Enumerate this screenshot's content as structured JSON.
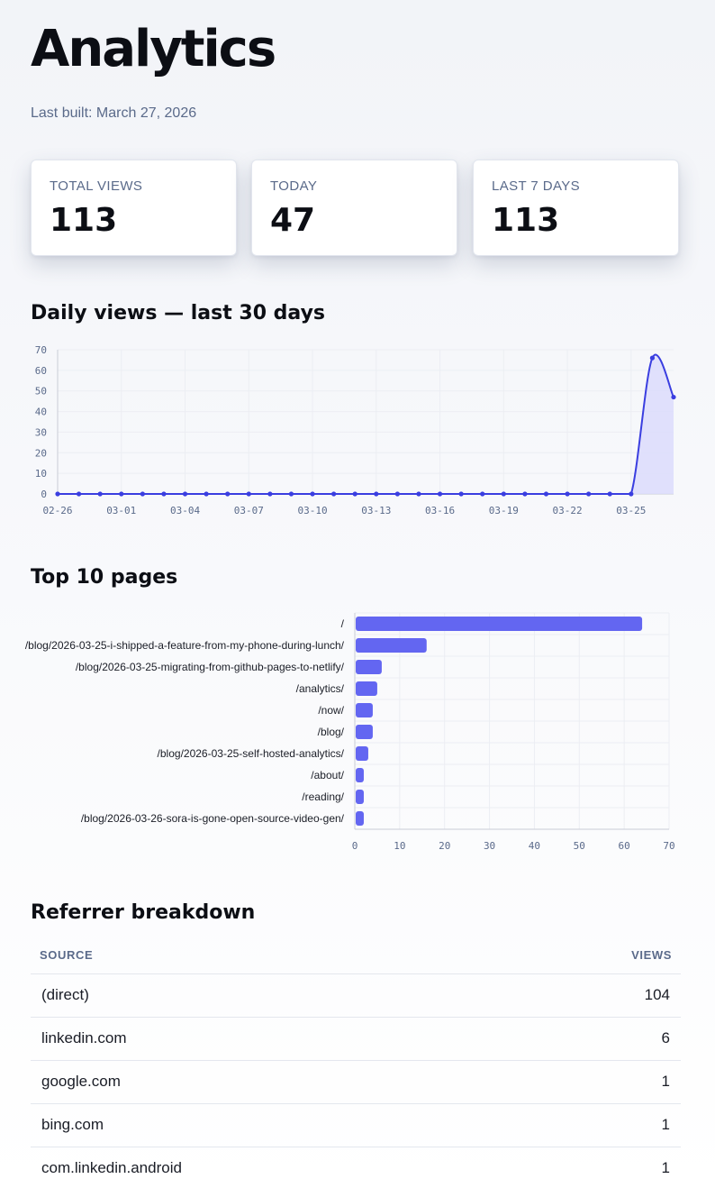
{
  "page": {
    "title": "Analytics",
    "last_built": "Last built: March 27, 2026"
  },
  "stats": [
    {
      "label": "TOTAL VIEWS",
      "value": "113"
    },
    {
      "label": "TODAY",
      "value": "47"
    },
    {
      "label": "LAST 7 DAYS",
      "value": "113"
    }
  ],
  "sections": {
    "daily_title": "Daily views — last 30 days",
    "pages_title": "Top 10 pages",
    "referrer_title": "Referrer breakdown"
  },
  "colors": {
    "line": "#3a3ee0",
    "area_fill": "#dcdcfb",
    "bar": "#6366f1"
  },
  "chart_data": [
    {
      "type": "line",
      "title": "Daily views — last 30 days",
      "ylim": [
        0,
        70
      ],
      "yticks": [
        0,
        10,
        20,
        30,
        40,
        50,
        60,
        70
      ],
      "x_tick_labels": [
        "02-26",
        "03-01",
        "03-04",
        "03-07",
        "03-10",
        "03-13",
        "03-16",
        "03-19",
        "03-22",
        "03-25"
      ],
      "x": [
        "02-26",
        "02-27",
        "02-28",
        "03-01",
        "03-02",
        "03-03",
        "03-04",
        "03-05",
        "03-06",
        "03-07",
        "03-08",
        "03-09",
        "03-10",
        "03-11",
        "03-12",
        "03-13",
        "03-14",
        "03-15",
        "03-16",
        "03-17",
        "03-18",
        "03-19",
        "03-20",
        "03-21",
        "03-22",
        "03-23",
        "03-24",
        "03-25",
        "03-26",
        "03-27"
      ],
      "values": [
        0,
        0,
        0,
        0,
        0,
        0,
        0,
        0,
        0,
        0,
        0,
        0,
        0,
        0,
        0,
        0,
        0,
        0,
        0,
        0,
        0,
        0,
        0,
        0,
        0,
        0,
        0,
        0,
        66,
        47
      ],
      "grid": true,
      "fill": true
    },
    {
      "type": "bar",
      "orientation": "horizontal",
      "title": "Top 10 pages",
      "categories": [
        "/",
        "/blog/2026-03-25-i-shipped-a-feature-from-my-phone-during-lunch/",
        "/blog/2026-03-25-migrating-from-github-pages-to-netlify/",
        "/analytics/",
        "/now/",
        "/blog/",
        "/blog/2026-03-25-self-hosted-analytics/",
        "/about/",
        "/reading/",
        "/blog/2026-03-26-sora-is-gone-open-source-video-gen/"
      ],
      "values": [
        64,
        16,
        6,
        5,
        4,
        4,
        3,
        2,
        2,
        2
      ],
      "xlim": [
        0,
        70
      ],
      "xticks": [
        0,
        10,
        20,
        30,
        40,
        50,
        60,
        70
      ],
      "grid": true
    }
  ],
  "referrers": {
    "headers": {
      "source": "SOURCE",
      "views": "VIEWS"
    },
    "rows": [
      {
        "source": "(direct)",
        "views": "104"
      },
      {
        "source": "linkedin.com",
        "views": "6"
      },
      {
        "source": "google.com",
        "views": "1"
      },
      {
        "source": "bing.com",
        "views": "1"
      },
      {
        "source": "com.linkedin.android",
        "views": "1"
      }
    ]
  }
}
